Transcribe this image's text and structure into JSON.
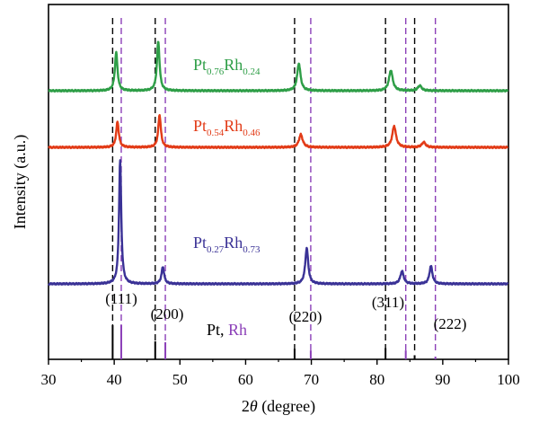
{
  "chart_data": {
    "type": "line",
    "title": "",
    "xlabel": "2θ (degree)",
    "ylabel": "Intensity (a.u.)",
    "xlim": [
      30,
      100
    ],
    "x_ticks": [
      30,
      40,
      50,
      60,
      70,
      80,
      90,
      100
    ],
    "grid": false,
    "legend": "inline labels",
    "reference_lines": {
      "Pt": {
        "color": "#000000",
        "x": [
          39.76,
          46.24,
          67.45,
          81.29,
          85.72
        ]
      },
      "Rh": {
        "color": "#8b3fb8",
        "x": [
          41.07,
          47.78,
          69.91,
          84.37,
          88.88
        ]
      }
    },
    "peak_labels": [
      {
        "text": "(111)",
        "x": 40.5
      },
      {
        "text": "(200)",
        "x": 47.2
      },
      {
        "text": "(220)",
        "x": 68.7
      },
      {
        "text": "(311)",
        "x": 82.5
      },
      {
        "text": "(222)",
        "x": 87.5
      }
    ],
    "reference_sticks": {
      "Pt": [
        {
          "x": 39.76,
          "rel": 1.0
        },
        {
          "x": 46.24,
          "rel": 0.53
        },
        {
          "x": 67.45,
          "rel": 0.31
        },
        {
          "x": 81.29,
          "rel": 0.33
        },
        {
          "x": 85.72,
          "rel": 0.12
        }
      ],
      "Rh": [
        {
          "x": 41.07,
          "rel": 1.0
        },
        {
          "x": 47.78,
          "rel": 0.5
        },
        {
          "x": 69.91,
          "rel": 0.26
        },
        {
          "x": 84.37,
          "rel": 0.26
        },
        {
          "x": 88.88,
          "rel": 0.08
        }
      ]
    },
    "series": [
      {
        "name_main1": "Pt",
        "name_sub1": "0.76",
        "name_main2": "Rh",
        "name_sub2": "0.24",
        "color": "#2e9e47",
        "baseline": 0.0,
        "peaks": [
          {
            "x": 40.3,
            "h": 0.45,
            "w": 0.35
          },
          {
            "x": 46.7,
            "h": 0.58,
            "w": 0.35
          },
          {
            "x": 68.1,
            "h": 0.32,
            "w": 0.45
          },
          {
            "x": 82.1,
            "h": 0.24,
            "w": 0.5
          },
          {
            "x": 86.5,
            "h": 0.06,
            "w": 0.5
          }
        ]
      },
      {
        "name_main1": "Pt",
        "name_sub1": "0.54",
        "name_main2": "Rh",
        "name_sub2": "0.46",
        "color": "#e23b17",
        "baseline": 0.0,
        "peaks": [
          {
            "x": 40.5,
            "h": 0.3,
            "w": 0.35
          },
          {
            "x": 46.9,
            "h": 0.38,
            "w": 0.35
          },
          {
            "x": 68.4,
            "h": 0.15,
            "w": 0.5
          },
          {
            "x": 82.6,
            "h": 0.25,
            "w": 0.5
          },
          {
            "x": 87.1,
            "h": 0.06,
            "w": 0.5
          }
        ]
      },
      {
        "name_main1": "Pt",
        "name_sub1": "0.27",
        "name_main2": "Rh",
        "name_sub2": "0.73",
        "color": "#3a3296",
        "baseline": 0.0,
        "peaks": [
          {
            "x": 40.9,
            "h": 1.45,
            "w": 0.3
          },
          {
            "x": 47.4,
            "h": 0.2,
            "w": 0.35
          },
          {
            "x": 69.3,
            "h": 0.42,
            "w": 0.4
          },
          {
            "x": 83.8,
            "h": 0.15,
            "w": 0.45
          },
          {
            "x": 88.2,
            "h": 0.21,
            "w": 0.4
          }
        ]
      }
    ]
  }
}
